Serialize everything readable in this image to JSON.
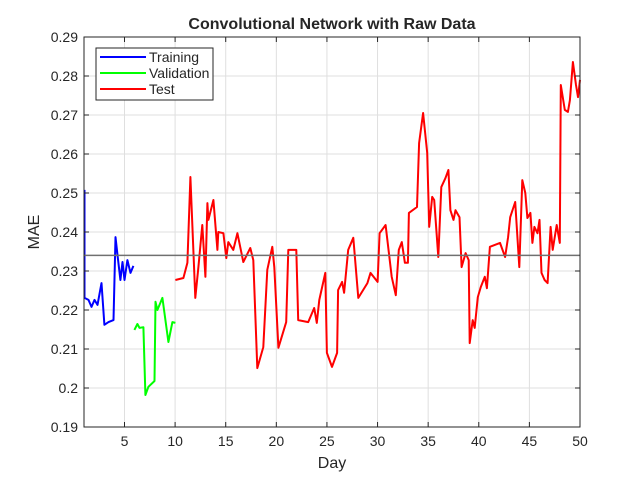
{
  "chart_data": {
    "type": "line",
    "title": "Convolutional Network with Raw Data",
    "xlabel": "Day",
    "ylabel": "MAE",
    "xlim": [
      1,
      50
    ],
    "ylim": [
      0.19,
      0.29
    ],
    "xticks": [
      5,
      10,
      15,
      20,
      25,
      30,
      35,
      40,
      45,
      50
    ],
    "yticks": [
      0.19,
      0.2,
      0.21,
      0.22,
      0.23,
      0.24,
      0.25,
      0.26,
      0.27,
      0.28,
      0.29
    ],
    "ytick_labels": [
      "0.19",
      "0.2",
      "0.21",
      "0.22",
      "0.23",
      "0.24",
      "0.25",
      "0.26",
      "0.27",
      "0.28",
      "0.29"
    ],
    "grid": true,
    "legend_position": "top-left",
    "reference_line": {
      "y": 0.234,
      "color": "#707070"
    },
    "series": [
      {
        "name": "Training",
        "color": "#0000ff",
        "x": [
          1.05,
          1.05,
          1.44,
          1.74,
          2.04,
          2.33,
          2.73,
          3.02,
          3.42,
          3.91,
          4.11,
          4.31,
          4.6,
          4.8,
          5.0,
          5.29,
          5.59,
          5.88
        ],
        "y": [
          0.2508,
          0.2231,
          0.2226,
          0.2208,
          0.2226,
          0.2213,
          0.2269,
          0.2162,
          0.2169,
          0.2174,
          0.2387,
          0.2341,
          0.2277,
          0.2323,
          0.2277,
          0.2328,
          0.2295,
          0.2313
        ]
      },
      {
        "name": "Validation",
        "color": "#00ff00",
        "x": [
          5.98,
          6.28,
          6.48,
          6.87,
          7.07,
          7.36,
          7.96,
          8.06,
          8.25,
          8.75,
          9.34,
          9.73,
          10.03
        ],
        "y": [
          0.2149,
          0.2164,
          0.2154,
          0.2156,
          0.1982,
          0.2003,
          0.2018,
          0.2221,
          0.22,
          0.2231,
          0.2118,
          0.2169,
          0.2167
        ]
      },
      {
        "name": "Test",
        "color": "#ff0000",
        "x": [
          10.03,
          10.82,
          11.21,
          11.51,
          12.0,
          12.3,
          12.69,
          12.99,
          13.19,
          13.29,
          13.78,
          14.18,
          14.27,
          14.77,
          15.06,
          15.26,
          15.75,
          16.15,
          16.74,
          17.43,
          17.73,
          18.12,
          18.71,
          19.11,
          19.6,
          19.8,
          20.2,
          20.98,
          21.18,
          21.97,
          22.16,
          23.15,
          23.74,
          24.0,
          24.25,
          24.84,
          25.0,
          25.5,
          26.0,
          26.1,
          26.5,
          26.7,
          27.1,
          27.6,
          28.1,
          29.0,
          29.3,
          30.0,
          30.2,
          30.8,
          31.4,
          31.8,
          32.1,
          32.4,
          32.7,
          33.0,
          33.1,
          33.9,
          34.1,
          34.5,
          34.9,
          35.1,
          35.4,
          35.6,
          36.0,
          36.3,
          36.7,
          37.0,
          37.2,
          37.5,
          37.7,
          38.1,
          38.3,
          38.7,
          39.0,
          39.1,
          39.4,
          39.6,
          39.9,
          40.2,
          40.6,
          40.8,
          41.1,
          42.1,
          42.6,
          42.9,
          43.1,
          43.6,
          44.0,
          44.3,
          44.6,
          44.8,
          45.1,
          45.3,
          45.5,
          45.8,
          46.0,
          46.2,
          46.5,
          46.8,
          47.1,
          47.3,
          47.7,
          48.0,
          48.1,
          48.5,
          48.8,
          49.0,
          49.3,
          49.6,
          49.8,
          50.0
        ],
        "y": [
          0.2277,
          0.2282,
          0.2321,
          0.2541,
          0.2231,
          0.231,
          0.2418,
          0.2285,
          0.2474,
          0.2431,
          0.2482,
          0.2354,
          0.24,
          0.2397,
          0.2333,
          0.2374,
          0.2354,
          0.2397,
          0.2323,
          0.2359,
          0.2328,
          0.2051,
          0.2105,
          0.2303,
          0.2362,
          0.231,
          0.2103,
          0.2169,
          0.2354,
          0.2354,
          0.2174,
          0.2169,
          0.2205,
          0.2167,
          0.2226,
          0.2295,
          0.209,
          0.2054,
          0.209,
          0.2251,
          0.2272,
          0.2244,
          0.2354,
          0.2385,
          0.2231,
          0.2269,
          0.2295,
          0.2272,
          0.2397,
          0.2418,
          0.2285,
          0.2238,
          0.2354,
          0.2374,
          0.2321,
          0.2321,
          0.2449,
          0.2464,
          0.2628,
          0.2705,
          0.2603,
          0.2413,
          0.249,
          0.2482,
          0.2336,
          0.2515,
          0.2538,
          0.2559,
          0.2456,
          0.2431,
          0.2456,
          0.2438,
          0.231,
          0.2346,
          0.2328,
          0.2115,
          0.2174,
          0.2154,
          0.2233,
          0.2259,
          0.2285,
          0.2256,
          0.2362,
          0.2372,
          0.2336,
          0.2387,
          0.2438,
          0.2477,
          0.231,
          0.2533,
          0.25,
          0.2436,
          0.2449,
          0.2372,
          0.2413,
          0.2397,
          0.2431,
          0.2295,
          0.2277,
          0.2269,
          0.2413,
          0.2354,
          0.2418,
          0.2372,
          0.2777,
          0.2713,
          0.2708,
          0.2738,
          0.2836,
          0.2777,
          0.2746,
          0.279
        ]
      }
    ]
  }
}
